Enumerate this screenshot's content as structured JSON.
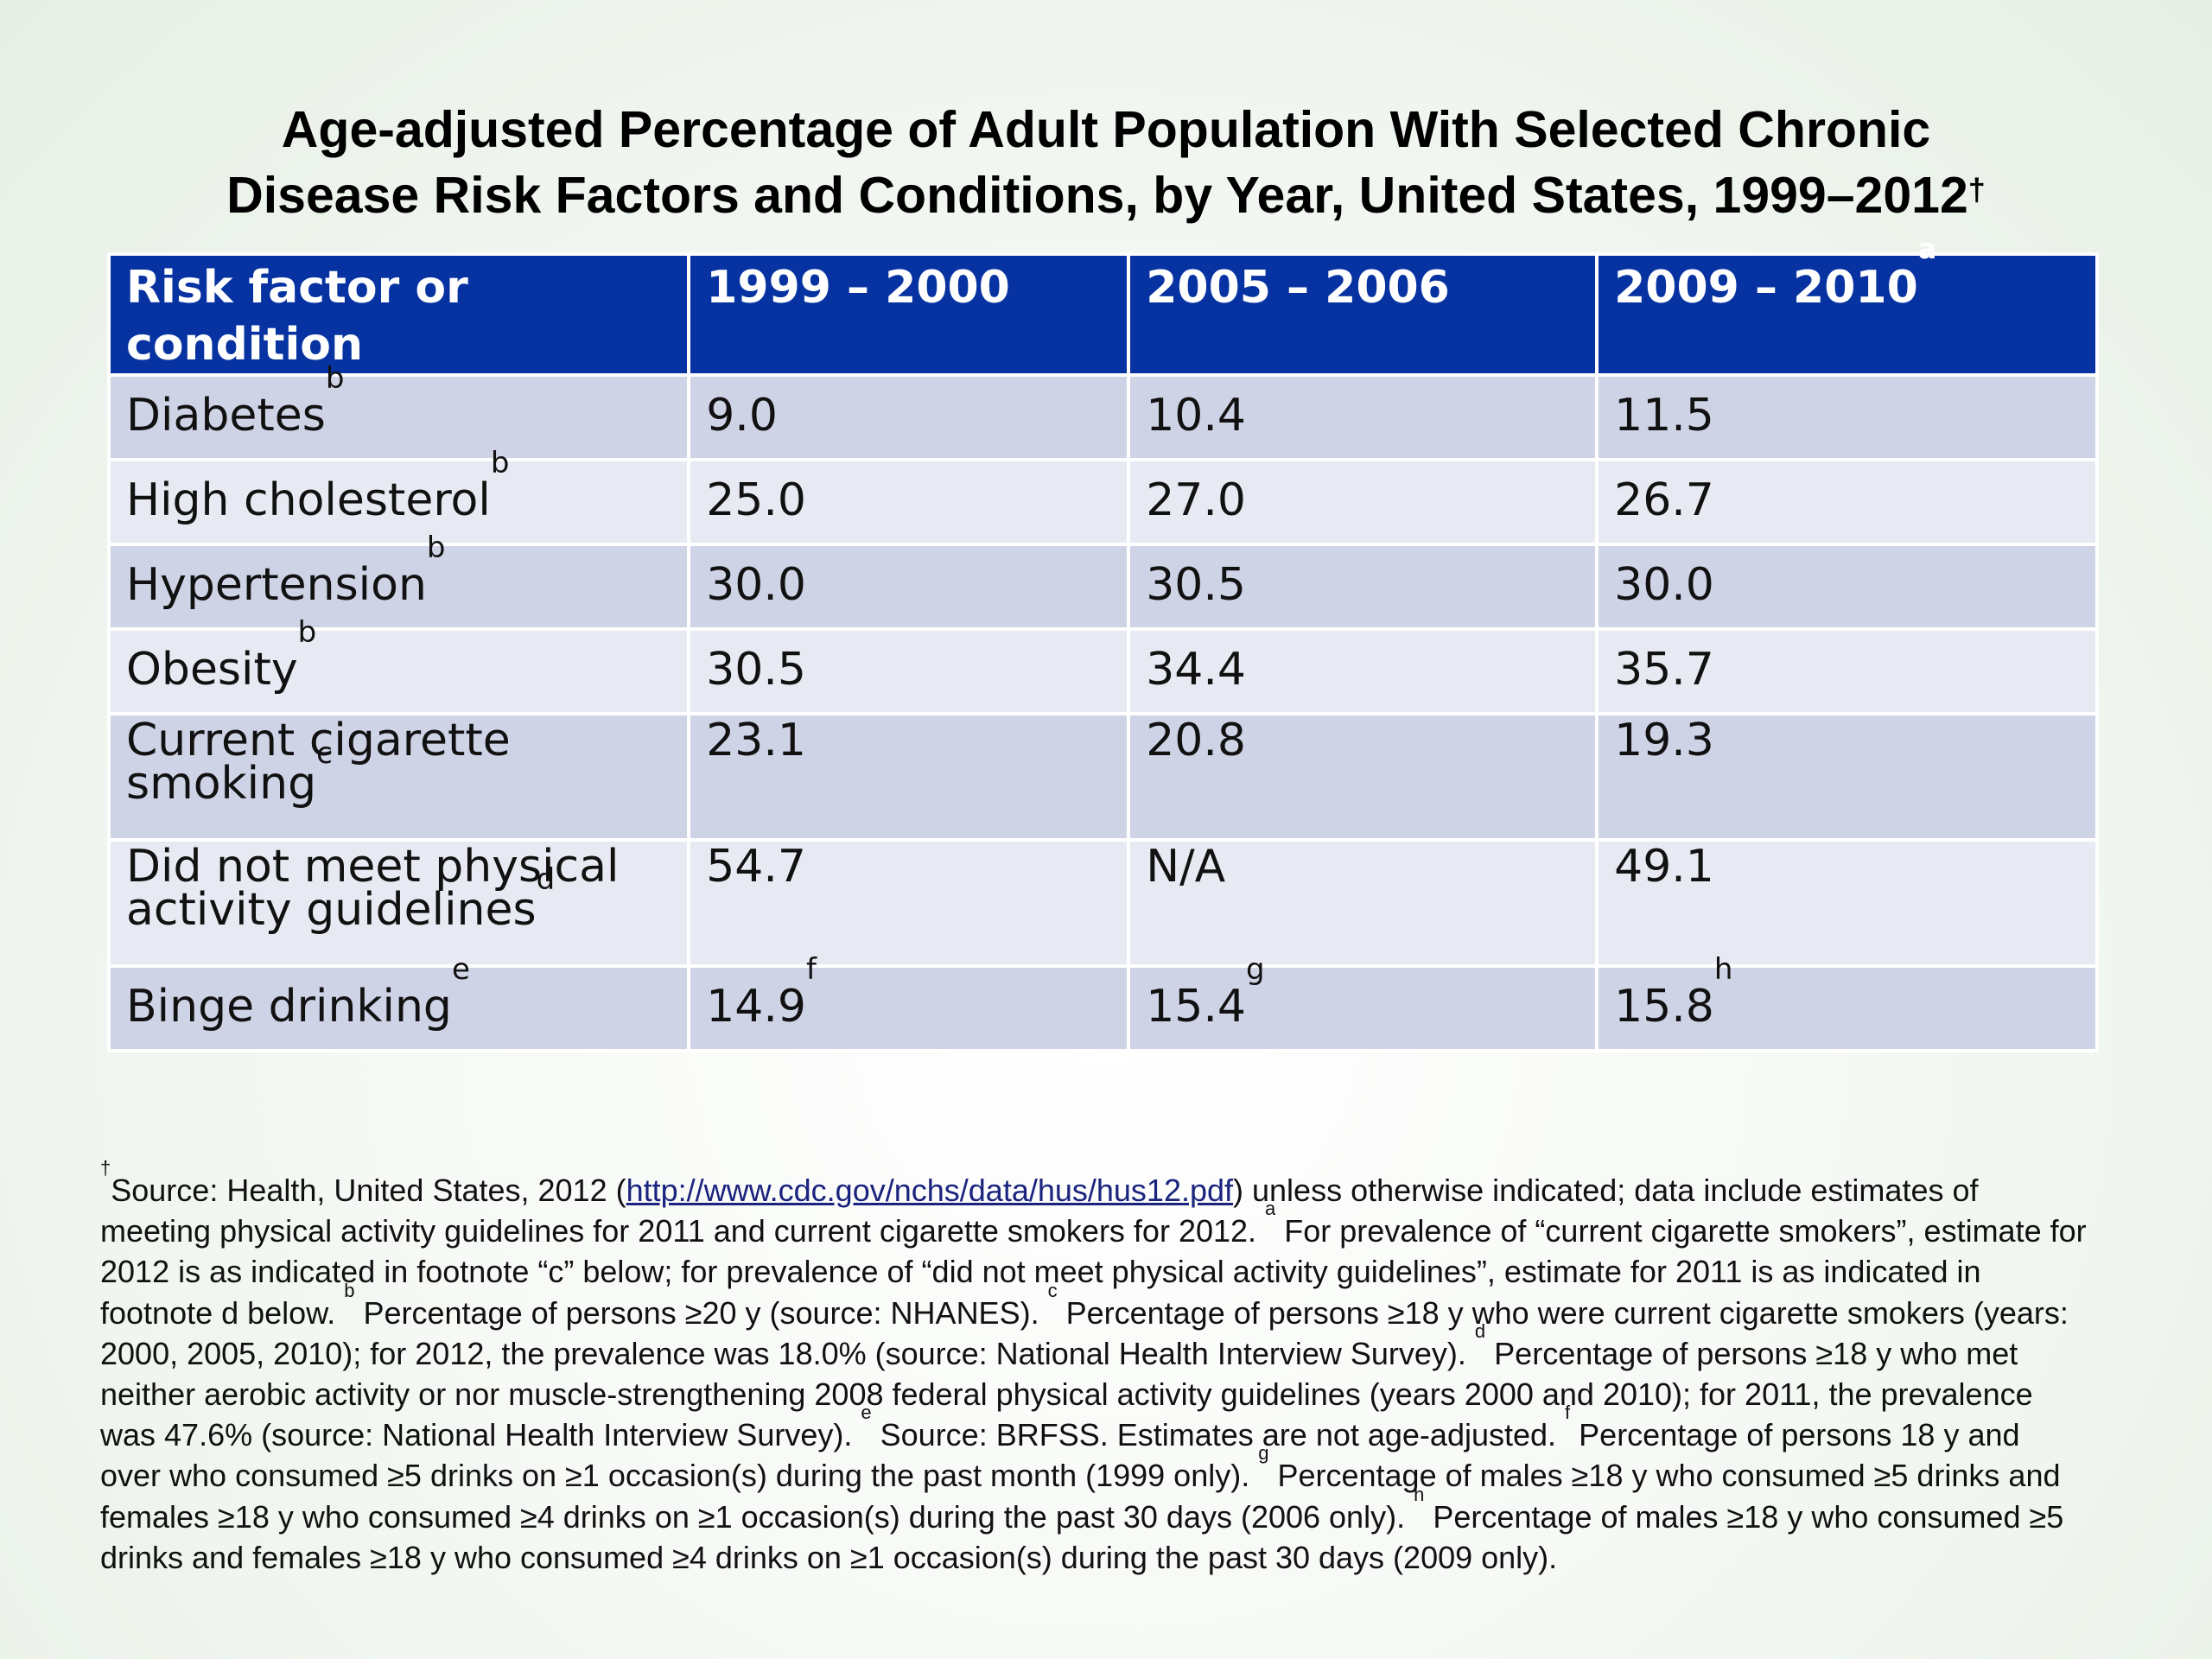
{
  "title": {
    "line1": "Age-adjusted Percentage of Adult Population With Selected Chronic",
    "line2": "Disease Risk Factors and Conditions, by Year, United States, 1999–2012",
    "line2_sup": "†"
  },
  "table": {
    "headers": [
      {
        "text": "Risk factor or condition",
        "sup": ""
      },
      {
        "text": "1999 – 2000",
        "sup": ""
      },
      {
        "text": "2005 – 2006",
        "sup": ""
      },
      {
        "text": "2009 – 2010",
        "sup": "a"
      }
    ],
    "rows": [
      {
        "label": "Diabetes",
        "label_sup": "b",
        "label_line2": "",
        "v1": "9.0",
        "v1_sup": "",
        "v2": "10.4",
        "v2_sup": "",
        "v3": "11.5",
        "v3_sup": ""
      },
      {
        "label": "High cholesterol",
        "label_sup": "b",
        "label_line2": "",
        "v1": "25.0",
        "v1_sup": "",
        "v2": "27.0",
        "v2_sup": "",
        "v3": "26.7",
        "v3_sup": ""
      },
      {
        "label": "Hypertension",
        "label_sup": "b",
        "label_line2": "",
        "v1": "30.0",
        "v1_sup": "",
        "v2": "30.5",
        "v2_sup": "",
        "v3": "30.0",
        "v3_sup": ""
      },
      {
        "label": "Obesity",
        "label_sup": "b",
        "label_line2": "",
        "v1": "30.5",
        "v1_sup": "",
        "v2": "34.4",
        "v2_sup": "",
        "v3": "35.7",
        "v3_sup": ""
      },
      {
        "label": "Current cigarette",
        "label_line2": "smoking",
        "label_sup": "c",
        "v1": "23.1",
        "v1_sup": "",
        "v2": "20.8",
        "v2_sup": "",
        "v3": "19.3",
        "v3_sup": ""
      },
      {
        "label": "Did not meet physical",
        "label_line2": "activity guidelines",
        "label_sup": "d",
        "v1": "54.7",
        "v1_sup": "",
        "v2": "N/A",
        "v2_sup": "",
        "v3": "49.1",
        "v3_sup": ""
      },
      {
        "label": "Binge drinking",
        "label_sup": "e",
        "label_line2": "",
        "v1": "14.9",
        "v1_sup": "f",
        "v2": "15.4",
        "v2_sup": "g",
        "v3": "15.8",
        "v3_sup": "h"
      }
    ]
  },
  "footnote": {
    "dagger": "†",
    "p1": "Source: Health, United States, 2012 (",
    "link": "http://www.cdc.gov/nchs/data/hus/hus12.pdf",
    "p2": ") unless otherwise indicated; data include estimates of meeting physical activity guidelines for 2011 and current cigarette smokers for 2012.  ",
    "a_mark": "a",
    "a_text": " For prevalence of “current cigarette smokers”, estimate for 2012 is as indicated in footnote “c” below; for prevalence of “did not meet physical activity guidelines”, estimate for 2011 is as indicated in footnote d below.  ",
    "b_mark": "b",
    "b_text": " Percentage of persons ≥20 y (source: NHANES).  ",
    "c_mark": "c",
    "c_text": " Percentage of persons ≥18 y who were current cigarette smokers (years: 2000, 2005, 2010); for 2012, the prevalence was 18.0% (source: National Health Interview Survey).  ",
    "d_mark": "d",
    "d_text": " Percentage of persons ≥18 y who met neither aerobic activity or nor muscle-strengthening 2008 federal physical activity guidelines (years 2000 and 2010); for 2011, the prevalence was 47.6% (source: National Health Interview Survey).  ",
    "e_mark": "e",
    "e_text": " Source: BRFSS. Estimates are not age-adjusted.  ",
    "f_mark": "f",
    "f_text": " Percentage of persons 18 y and over who consumed ≥5 drinks on ≥1 occasion(s) during the past month (1999 only).  ",
    "g_mark": "g",
    "g_text": " Percentage of males ≥18 y who consumed ≥5 drinks and females ≥18 y who consumed ≥4 drinks on ≥1 occasion(s) during the past 30 days (2006 only). ",
    "h_mark": "h",
    "h_text": " Percentage of males ≥18 y who consumed ≥5 drinks and females ≥18 y who consumed ≥4 drinks on ≥1 occasion(s) during the past 30 days (2009 only)."
  }
}
